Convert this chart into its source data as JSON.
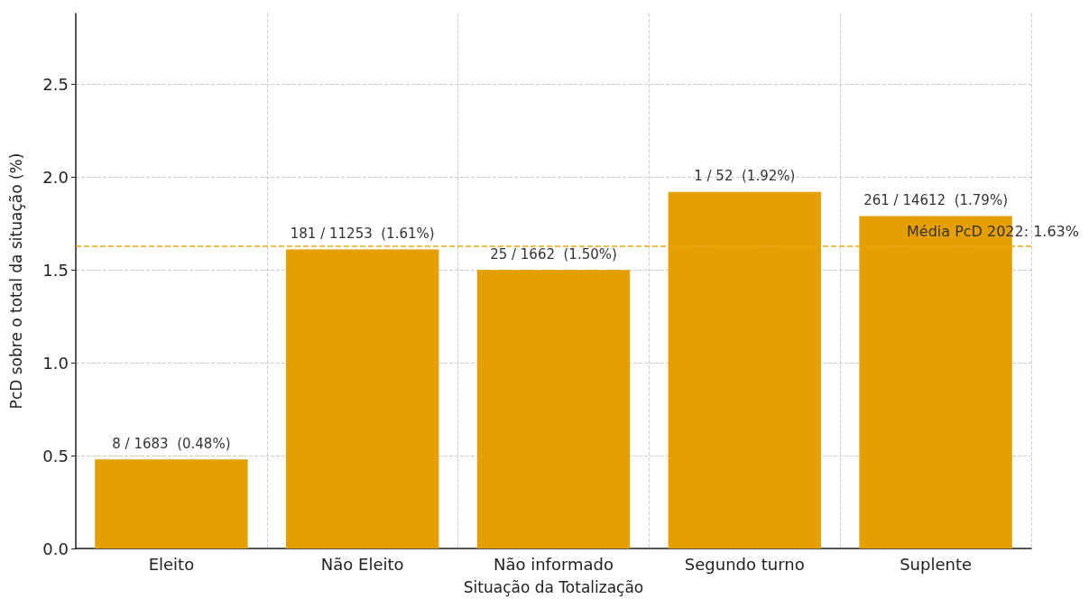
{
  "chart_data": {
    "type": "bar",
    "xlabel": "Situação da Totalização",
    "ylabel": "PcD sobre o total da situação (%)",
    "categories": [
      "Eleito",
      "Não Eleito",
      "Não informado",
      "Segundo turno",
      "Suplente"
    ],
    "values": [
      0.48,
      1.61,
      1.5,
      1.92,
      1.79
    ],
    "value_labels": [
      "8 / 1683  (0.48%)",
      "181 / 11253  (1.61%)",
      "25 / 1662  (1.50%)",
      "1 / 52  (1.92%)",
      "261 / 14612  (1.79%)"
    ],
    "color": "#e69f00",
    "ylim": [
      0,
      2.88
    ],
    "yticks": [
      {
        "value": 0,
        "label": "0.0"
      },
      0.5,
      {
        "value": 1,
        "label": "1.0"
      },
      1.5,
      {
        "value": 2,
        "label": "2.0"
      },
      2.5
    ],
    "ref_lines": [
      {
        "axis": "y",
        "value": 1.63,
        "label": "Média PcD 2022: 1.63%",
        "color": "#e6a817",
        "line_style": "dashed"
      }
    ],
    "grid": true
  }
}
